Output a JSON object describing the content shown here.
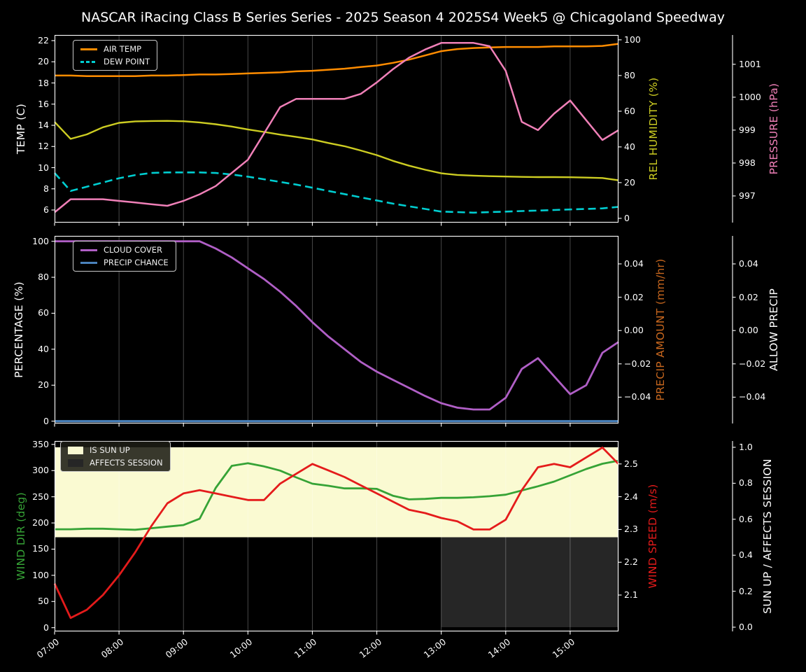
{
  "chart_data": {
    "type": "line",
    "title": "NASCAR iRacing Class B Series Series - 2025 Season 4 2025S4 Week5 @ Chicagoland Speedway",
    "background_color": "#000000",
    "time_hours": [
      7.0,
      7.25,
      7.5,
      7.75,
      8.0,
      8.25,
      8.5,
      8.75,
      9.0,
      9.25,
      9.5,
      9.75,
      10.0,
      10.25,
      10.5,
      10.75,
      11.0,
      11.25,
      11.5,
      11.75,
      12.0,
      12.25,
      12.5,
      12.75,
      13.0,
      13.25,
      13.5,
      13.75,
      14.0,
      14.25,
      14.5,
      14.75,
      15.0,
      15.25,
      15.5,
      15.75
    ],
    "x_axis": {
      "range_hours": [
        7.0,
        15.75
      ],
      "grid_hours": [
        8,
        9,
        10,
        11,
        12,
        13,
        14,
        15
      ],
      "tick_hours": [
        7,
        8,
        9,
        10,
        11,
        12,
        13,
        14,
        15
      ],
      "tick_labels": [
        "07:00",
        "08:00",
        "09:00",
        "10:00",
        "11:00",
        "12:00",
        "13:00",
        "14:00",
        "15:00"
      ]
    },
    "plots": [
      {
        "name": "temperature-panel",
        "axes": {
          "left": {
            "label": "TEMP (C)",
            "color": "#ffffff",
            "range": [
              4.81,
              22.53
            ],
            "tick_values": [
              6,
              8,
              10,
              12,
              14,
              16,
              18,
              20,
              22
            ],
            "tick_labels": [
              "6",
              "8",
              "10",
              "12",
              "14",
              "16",
              "18",
              "20",
              "22"
            ]
          },
          "right1": {
            "label": "REL HUMIDITY (%)",
            "color": "#cdcd22",
            "range": [
              -2.4,
              102.7
            ],
            "tick_values": [
              0,
              20,
              40,
              60,
              80,
              100
            ],
            "tick_labels": [
              "0",
              "20",
              "40",
              "60",
              "80",
              "100"
            ]
          },
          "right2": {
            "label": "PRESSURE (hPa)",
            "color": "#f080b8",
            "range": [
              996.19,
              1001.89
            ],
            "tick_values": [
              997,
              998,
              999,
              1000,
              1001
            ],
            "tick_labels": [
              "997",
              "998",
              "999",
              "1000",
              "1001"
            ]
          }
        },
        "legend": [
          {
            "label": "AIR TEMP",
            "color": "#ff8c00",
            "type": "line"
          },
          {
            "label": "DEW POINT",
            "color": "#00ced1",
            "type": "line-dashed"
          }
        ],
        "series": [
          {
            "name": "air-temp",
            "axis": "left",
            "color": "#ff8c00",
            "dash": false,
            "width": 2.5,
            "values": [
              18.7,
              18.7,
              18.65,
              18.65,
              18.65,
              18.65,
              18.7,
              18.7,
              18.75,
              18.8,
              18.8,
              18.85,
              18.9,
              18.95,
              19.0,
              19.1,
              19.15,
              19.25,
              19.35,
              19.5,
              19.65,
              19.9,
              20.2,
              20.6,
              21.0,
              21.2,
              21.3,
              21.35,
              21.4,
              21.4,
              21.4,
              21.45,
              21.45,
              21.45,
              21.5,
              21.7
            ]
          },
          {
            "name": "dew-point",
            "axis": "left",
            "color": "#00ced1",
            "dash": true,
            "width": 2.6,
            "values": [
              9.5,
              7.8,
              8.2,
              8.6,
              9.0,
              9.3,
              9.5,
              9.55,
              9.55,
              9.55,
              9.5,
              9.35,
              9.15,
              8.9,
              8.65,
              8.4,
              8.1,
              7.8,
              7.5,
              7.2,
              6.9,
              6.6,
              6.35,
              6.1,
              5.85,
              5.8,
              5.75,
              5.8,
              5.85,
              5.9,
              5.95,
              6.0,
              6.05,
              6.1,
              6.15,
              6.3
            ]
          },
          {
            "name": "rel-humidity",
            "axis": "right1",
            "color": "#cdcd22",
            "dash": false,
            "width": 2.4,
            "values": [
              54,
              44.5,
              47,
              51,
              53.5,
              54.3,
              54.5,
              54.6,
              54.4,
              53.7,
              52.7,
              51.4,
              49.8,
              48.4,
              46.9,
              45.6,
              44.2,
              42.2,
              40.4,
              38.0,
              35.4,
              32.2,
              29.5,
              27.2,
              25.2,
              24.3,
              23.9,
              23.6,
              23.4,
              23.2,
              23.1,
              23.1,
              23.0,
              22.8,
              22.6,
              21.3
            ]
          },
          {
            "name": "pressure",
            "axis": "right2",
            "color": "#f080b8",
            "dash": false,
            "width": 2.5,
            "values": [
              996.5,
              996.9,
              996.9,
              996.9,
              996.85,
              996.8,
              996.75,
              996.7,
              996.85,
              997.05,
              997.3,
              997.7,
              998.1,
              998.9,
              999.7,
              999.95,
              999.95,
              999.95,
              999.95,
              1000.1,
              1000.45,
              1000.85,
              1001.2,
              1001.45,
              1001.65,
              1001.65,
              1001.65,
              1001.55,
              1000.8,
              999.25,
              999.0,
              999.5,
              999.9,
              999.3,
              998.7,
              999.0
            ]
          }
        ]
      },
      {
        "name": "precipitation-panel",
        "axes": {
          "left": {
            "label": "PERCENTAGE (%)",
            "color": "#ffffff",
            "range": [
              -1.3,
              103.0
            ],
            "tick_values": [
              0,
              20,
              40,
              60,
              80,
              100
            ],
            "tick_labels": [
              "0",
              "20",
              "40",
              "60",
              "80",
              "100"
            ]
          },
          "right1": {
            "label": "PRECIP AMOUNT (mm/hr)",
            "color": "#c8671e",
            "range": [
              -0.0558,
              0.0568
            ],
            "tick_values": [
              0.04,
              0.02,
              0.0,
              -0.02,
              -0.04
            ],
            "tick_labels": [
              "0.04",
              "0.02",
              "0.00",
              "−0.02",
              "−0.04"
            ]
          },
          "right2": {
            "label": "ALLOW PRECIP",
            "color": "#ffffff",
            "range": [
              -0.0558,
              0.0568
            ],
            "tick_values": [
              0.04,
              0.02,
              0.0,
              -0.02,
              -0.04
            ],
            "tick_labels": [
              "0.04",
              "0.02",
              "0.00",
              "−0.02",
              "−0.04"
            ]
          }
        },
        "legend": [
          {
            "label": "CLOUD COVER",
            "color": "#b05fc6",
            "type": "line"
          },
          {
            "label": "PRECIP CHANCE",
            "color": "#4a82bc",
            "type": "line"
          }
        ],
        "series": [
          {
            "name": "cloud-cover",
            "axis": "left",
            "color": "#b05fc6",
            "dash": false,
            "width": 2.8,
            "values": [
              100,
              100,
              100,
              100,
              100,
              100,
              100,
              100,
              100,
              100,
              96,
              91,
              85,
              79,
              72,
              64,
              55,
              47,
              40,
              33,
              27.5,
              23,
              18.5,
              14,
              10,
              7.5,
              6.5,
              6.5,
              13,
              29,
              35,
              25,
              15,
              20,
              38,
              44
            ]
          },
          {
            "name": "precip-chance",
            "axis": "left",
            "color": "#4a82bc",
            "dash": false,
            "width": 3.2,
            "values": [
              0,
              0,
              0,
              0,
              0,
              0,
              0,
              0,
              0,
              0,
              0,
              0,
              0,
              0,
              0,
              0,
              0,
              0,
              0,
              0,
              0,
              0,
              0,
              0,
              0,
              0,
              0,
              0,
              0,
              0,
              0,
              0,
              0,
              0,
              0,
              0
            ]
          }
        ]
      },
      {
        "name": "wind-panel",
        "axes": {
          "left": {
            "label": "WIND DIR (deg)",
            "color": "#36a336",
            "range": [
              -7.1,
              356.5
            ],
            "tick_values": [
              0,
              50,
              100,
              150,
              200,
              250,
              300,
              350
            ],
            "tick_labels": [
              "0",
              "50",
              "100",
              "150",
              "200",
              "250",
              "300",
              "350"
            ]
          },
          "right1": {
            "label": "WIND SPEED (m/s)",
            "color": "#e41b1b",
            "range": [
              1.989,
              2.57
            ],
            "tick_values": [
              2.1,
              2.2,
              2.3,
              2.4,
              2.5
            ],
            "tick_labels": [
              "2.1",
              "2.2",
              "2.3",
              "2.4",
              "2.5"
            ]
          },
          "right2": {
            "label": "SUN UP / AFFECTS SESSION",
            "color": "#ffffff",
            "range": [
              -0.0234,
              1.035
            ],
            "tick_values": [
              0.0,
              0.2,
              0.4,
              0.6,
              0.8,
              1.0
            ],
            "tick_labels": [
              "0.0",
              "0.2",
              "0.4",
              "0.6",
              "0.8",
              "1.0"
            ]
          }
        },
        "fills": [
          {
            "name": "is-sun-up",
            "color": "#fafad2",
            "axis": "right2",
            "x_from": 7.0,
            "x_to": 15.75,
            "y_from": 0.5,
            "y_to": 1.0
          },
          {
            "name": "affects-session",
            "color": "#262626",
            "axis": "right2",
            "x_from": 13.0,
            "x_to": 15.75,
            "y_from": 0.0,
            "y_to": 0.5
          }
        ],
        "legend": [
          {
            "label": "IS SUN UP",
            "color": "#fafad2",
            "type": "patch"
          },
          {
            "label": "AFFECTS SESSION",
            "color": "#262626",
            "type": "patch"
          }
        ],
        "series": [
          {
            "name": "wind-dir",
            "axis": "left",
            "color": "#36a336",
            "dash": false,
            "width": 2.8,
            "values": [
              188,
              188,
              189,
              189,
              188,
              187,
              190,
              193,
              196,
              208,
              267,
              309,
              314,
              308,
              300,
              287,
              275,
              271,
              266,
              266,
              265,
              252,
              245,
              246,
              248,
              248,
              249,
              251,
              254,
              262,
              270,
              279,
              291,
              303,
              313,
              319
            ]
          },
          {
            "name": "wind-speed",
            "axis": "right1",
            "color": "#e41b1b",
            "dash": false,
            "width": 2.8,
            "values": [
              2.135,
              2.03,
              2.055,
              2.1,
              2.16,
              2.23,
              2.31,
              2.38,
              2.41,
              2.42,
              2.41,
              2.4,
              2.39,
              2.39,
              2.44,
              2.47,
              2.5,
              2.48,
              2.46,
              2.435,
              2.41,
              2.385,
              2.36,
              2.35,
              2.335,
              2.325,
              2.3,
              2.3,
              2.33,
              2.42,
              2.49,
              2.5,
              2.49,
              2.52,
              2.55,
              2.5
            ]
          }
        ]
      }
    ]
  }
}
